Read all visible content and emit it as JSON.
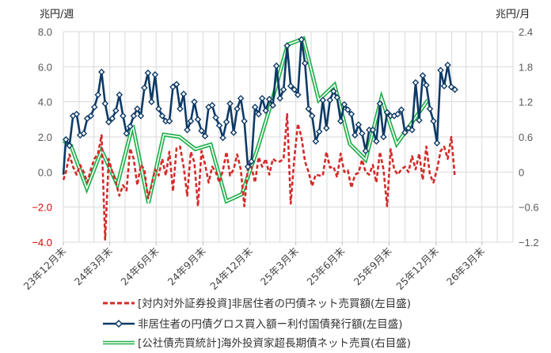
{
  "chart_data": {
    "type": "line",
    "left_axis": {
      "unit": "兆円/週",
      "ylim": [
        -4.0,
        8.0
      ],
      "ticks": [
        "8.0",
        "6.0",
        "4.0",
        "2.0",
        "0.0",
        "-2.0",
        "-4.0"
      ],
      "negative_tick_color": "#e00000"
    },
    "right_axis": {
      "unit": "兆円/月",
      "ylim": [
        -1.2,
        2.4
      ],
      "ticks": [
        "2.4",
        "1.8",
        "1.2",
        "0.6",
        "0",
        "-0.6",
        "-1.2"
      ]
    },
    "x_tick_labels": [
      "23年12月末",
      "24年3月末",
      "24年6月末",
      "24年9月末",
      "24年12月末",
      "25年3月末",
      "25年6月末",
      "25年9月末",
      "25年12月末",
      "26年3月末"
    ],
    "x_range": [
      "2023-12-31",
      "2026-05-31"
    ],
    "grid": true,
    "legend_position": "bottom",
    "weeks": [
      "2023-12-29",
      "2024-01-05",
      "2024-01-12",
      "2024-01-19",
      "2024-01-26",
      "2024-02-02",
      "2024-02-09",
      "2024-02-16",
      "2024-02-23",
      "2024-03-01",
      "2024-03-08",
      "2024-03-15",
      "2024-03-22",
      "2024-03-29",
      "2024-04-05",
      "2024-04-12",
      "2024-04-19",
      "2024-04-26",
      "2024-05-03",
      "2024-05-10",
      "2024-05-17",
      "2024-05-24",
      "2024-05-31",
      "2024-06-07",
      "2024-06-14",
      "2024-06-21",
      "2024-06-28",
      "2024-07-05",
      "2024-07-12",
      "2024-07-19",
      "2024-07-26",
      "2024-08-02",
      "2024-08-09",
      "2024-08-16",
      "2024-08-23",
      "2024-08-30",
      "2024-09-06",
      "2024-09-13",
      "2024-09-20",
      "2024-09-27",
      "2024-10-04",
      "2024-10-11",
      "2024-10-18",
      "2024-10-25",
      "2024-11-01",
      "2024-11-08",
      "2024-11-15",
      "2024-11-22",
      "2024-11-29",
      "2024-12-06",
      "2024-12-13",
      "2024-12-20",
      "2024-12-27",
      "2025-01-03",
      "2025-01-10",
      "2025-01-17",
      "2025-01-24",
      "2025-01-31",
      "2025-02-07",
      "2025-02-14",
      "2025-02-21",
      "2025-02-28",
      "2025-03-07",
      "2025-03-14",
      "2025-03-21",
      "2025-03-28",
      "2025-04-04",
      "2025-04-11",
      "2025-04-18",
      "2025-04-25",
      "2025-05-02",
      "2025-05-09",
      "2025-05-16",
      "2025-05-23",
      "2025-05-30",
      "2025-06-06",
      "2025-06-13",
      "2025-06-20",
      "2025-06-27",
      "2025-07-04",
      "2025-07-11",
      "2025-07-18",
      "2025-07-25",
      "2025-08-01",
      "2025-08-08",
      "2025-08-15",
      "2025-08-22",
      "2025-08-29",
      "2025-09-05",
      "2025-09-12",
      "2025-09-19",
      "2025-09-26",
      "2025-10-03",
      "2025-10-10",
      "2025-10-17",
      "2025-10-24",
      "2025-10-31",
      "2025-11-07",
      "2025-11-14",
      "2025-11-21",
      "2025-11-28",
      "2025-12-05",
      "2025-12-12",
      "2025-12-19",
      "2025-12-26",
      "2026-01-02",
      "2026-01-09",
      "2026-01-16",
      "2026-01-23",
      "2026-01-30",
      "2026-02-06"
    ],
    "series": [
      {
        "name": "[対内対外証券投資]非居住者の円債ネット売買額(左目盛)",
        "axis": "left",
        "color": "#d42a2a",
        "style": "dashed",
        "values": [
          -0.45,
          0,
          1.0,
          0.3,
          -0.15,
          0.4,
          0,
          -0.6,
          0.15,
          0.75,
          1.05,
          2.1,
          -3.85,
          0.75,
          0,
          -0.6,
          -1.35,
          -0.75,
          -1.05,
          1.35,
          0.75,
          -0.75,
          0.4,
          0.15,
          -1.5,
          -0.75,
          0.15,
          -0.2,
          0.75,
          -0.2,
          1.15,
          -1.1,
          1.35,
          1.45,
          0.3,
          -1.35,
          1.15,
          0.55,
          -1.95,
          1.2,
          0.45,
          -0.6,
          0.3,
          0,
          -0.6,
          0.1,
          1.15,
          -0.2,
          0.15,
          1.0,
          0.15,
          -1.95,
          0.3,
          0.3,
          -0.6,
          0.85,
          0.3,
          0.75,
          -0.15,
          0.75,
          0.6,
          0.6,
          0.75,
          3.3,
          -1.8,
          0.75,
          2.75,
          2.0,
          0.6,
          0,
          -0.8,
          -0.15,
          -0.2,
          -0.2,
          1.15,
          0.25,
          0.3,
          -0.3,
          1.05,
          0,
          0.1,
          -0.9,
          -0.15,
          -0.05,
          0.7,
          0,
          -0.15,
          0.4,
          -0.6,
          1.15,
          0.15,
          -1.95,
          1.3,
          0.15,
          -0.15,
          0.15,
          0.3,
          0,
          0.9,
          0.15,
          1.05,
          -0.45,
          1.45,
          -0.15,
          -0.6,
          0.15,
          1.2,
          1.45,
          0.75,
          2.0,
          -0.3
        ]
      },
      {
        "name": "非居住者の円債グロス買入額ー利付国債発行額(左目盛)",
        "axis": "left",
        "color": "#0d3a66",
        "style": "solid-diamond",
        "values": [
          -0.15,
          1.85,
          1.5,
          3.2,
          3.3,
          2.1,
          2.2,
          3.05,
          3.2,
          3.7,
          4.4,
          5.7,
          3.9,
          2.85,
          3.05,
          3.5,
          4.4,
          3.2,
          2.2,
          2.6,
          3.2,
          3.6,
          3.2,
          4.8,
          5.65,
          4.0,
          5.55,
          3.6,
          3.2,
          2.9,
          2.9,
          4.85,
          5.0,
          3.6,
          4.45,
          2.4,
          2.9,
          4.0,
          3.0,
          2.35,
          2.05,
          3.7,
          3.8,
          3.1,
          2.65,
          1.95,
          2.85,
          3.9,
          2.25,
          3.6,
          4.2,
          2.9,
          0.3,
          0.6,
          3.7,
          3.3,
          4.2,
          3.5,
          4.15,
          3.8,
          6.05,
          4.2,
          4.7,
          7.2,
          4.9,
          4.7,
          4.4,
          7.55,
          6.2,
          3.6,
          3.2,
          1.75,
          2.3,
          4.1,
          2.5,
          4.1,
          4.6,
          4.25,
          2.9,
          3.85,
          3.55,
          3.3,
          2.1,
          2.7,
          2.2,
          1.2,
          2.4,
          2.4,
          1.75,
          3.9,
          2.0,
          3.4,
          3.2,
          3.2,
          3.3,
          3.55,
          2.25,
          2.5,
          2.4,
          5.1,
          2.95,
          5.5,
          4.95,
          3.6,
          2.9,
          1.65,
          5.8,
          4.9,
          6.1,
          4.85,
          4.7
        ]
      },
      {
        "name": "[公社債売買統計]海外投資家超長期債ネット売買(右目盛)",
        "axis": "right",
        "color": "#22b04b",
        "style": "double-line",
        "months": [
          "2023-12",
          "2024-01",
          "2024-02",
          "2024-03",
          "2024-04",
          "2024-05",
          "2024-06",
          "2024-07",
          "2024-08",
          "2024-09",
          "2024-10",
          "2024-11",
          "2024-12",
          "2025-01",
          "2025-02",
          "2025-03",
          "2025-04",
          "2025-05",
          "2025-06",
          "2025-07",
          "2025-08",
          "2025-09",
          "2025-10",
          "2025-11",
          "2025-12"
        ],
        "values": [
          0.54,
          0.45,
          -0.28,
          0.37,
          -0.22,
          0.8,
          -0.53,
          0.64,
          0.6,
          0.39,
          0.47,
          -0.5,
          -0.38,
          0.4,
          1.3,
          2.18,
          2.28,
          1.23,
          1.49,
          0.48,
          0.21,
          1.27,
          0.48,
          0.86,
          1.23
        ]
      }
    ]
  }
}
